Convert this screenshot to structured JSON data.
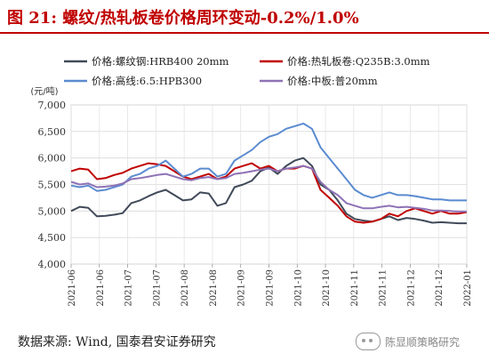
{
  "header": {
    "title": "图 21:  螺纹/热轧板卷价格周环变动-0.2%/1.0%"
  },
  "footer": {
    "source": "数据来源:  Wind, 国泰君安证券研究"
  },
  "watermark": {
    "text": "陈显顺策略研究",
    "icon": "wechat-logo-icon"
  },
  "chart_data": {
    "type": "line",
    "ylabel": "(元/吨)",
    "ylim": [
      4000,
      7000
    ],
    "yticks": [
      "7,000",
      "6,500",
      "6,000",
      "5,500",
      "5,000",
      "4,500",
      "4,000"
    ],
    "xticks": [
      "2021-06",
      "2021-06",
      "2021-07",
      "2021-07",
      "2021-08",
      "2021-08",
      "2021-09",
      "2021-09",
      "2021-10",
      "2021-10",
      "2021-11",
      "2021-11",
      "2021-12",
      "2021-12",
      "2022-01"
    ],
    "grid": true,
    "legend_position": "top",
    "colors": {
      "rebar": "#404a59",
      "hrc": "#c00000",
      "wire": "#5b8bd0",
      "plate": "#8e72b6"
    },
    "series": [
      {
        "name": "价格:螺纹钢:HRB400 20mm",
        "color": "#404a59",
        "values": [
          5000,
          5080,
          5060,
          4900,
          4910,
          4930,
          4960,
          5150,
          5200,
          5280,
          5350,
          5400,
          5300,
          5200,
          5220,
          5350,
          5330,
          5100,
          5150,
          5450,
          5500,
          5570,
          5750,
          5820,
          5700,
          5850,
          5950,
          6000,
          5850,
          5500,
          5400,
          5200,
          4950,
          4850,
          4820,
          4800,
          4850,
          4900,
          4830,
          4870,
          4850,
          4820,
          4780,
          4790,
          4780,
          4770,
          4770
        ]
      },
      {
        "name": "价格:热轧板卷:Q235B:3.0mm",
        "color": "#c00000",
        "values": [
          5750,
          5800,
          5780,
          5600,
          5620,
          5680,
          5720,
          5800,
          5850,
          5900,
          5880,
          5850,
          5750,
          5650,
          5600,
          5650,
          5700,
          5600,
          5650,
          5800,
          5850,
          5900,
          5800,
          5850,
          5750,
          5800,
          5800,
          5850,
          5800,
          5400,
          5250,
          5100,
          4900,
          4800,
          4780,
          4800,
          4850,
          4950,
          4900,
          5000,
          5050,
          5000,
          4950,
          5000,
          4950,
          4950,
          4980
        ]
      },
      {
        "name": "价格:高线:6.5:HPB300",
        "color": "#5b8bd0",
        "values": [
          5480,
          5450,
          5480,
          5380,
          5400,
          5450,
          5500,
          5650,
          5700,
          5800,
          5850,
          5950,
          5800,
          5650,
          5700,
          5800,
          5800,
          5650,
          5700,
          5950,
          6050,
          6150,
          6300,
          6400,
          6450,
          6550,
          6600,
          6650,
          6550,
          6200,
          6000,
          5800,
          5600,
          5400,
          5300,
          5250,
          5300,
          5350,
          5300,
          5300,
          5280,
          5250,
          5220,
          5220,
          5200,
          5200,
          5200
        ]
      },
      {
        "name": "价格:中板:普20mm",
        "color": "#8e72b6",
        "values": [
          5550,
          5500,
          5520,
          5450,
          5460,
          5480,
          5520,
          5600,
          5620,
          5650,
          5680,
          5700,
          5650,
          5600,
          5580,
          5620,
          5640,
          5600,
          5620,
          5700,
          5720,
          5750,
          5780,
          5800,
          5750,
          5800,
          5820,
          5850,
          5800,
          5550,
          5400,
          5300,
          5150,
          5100,
          5050,
          5050,
          5080,
          5100,
          5070,
          5080,
          5060,
          5040,
          5010,
          5010,
          5000,
          4990,
          4990
        ]
      }
    ]
  }
}
